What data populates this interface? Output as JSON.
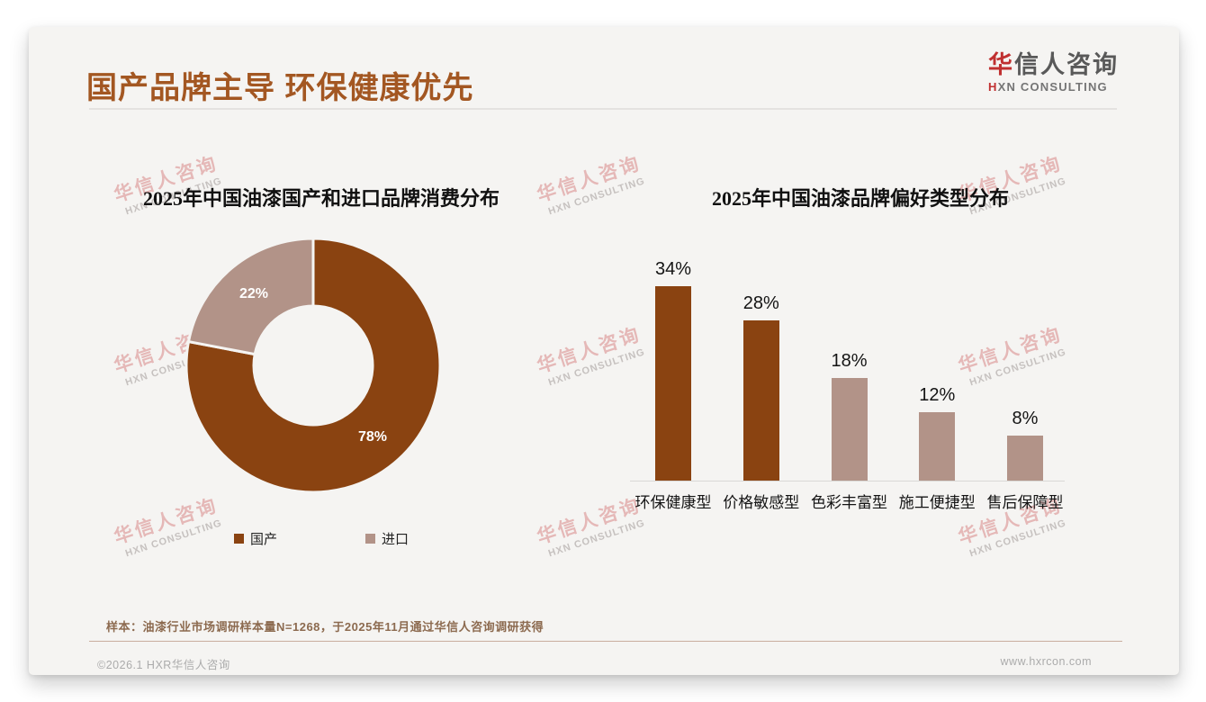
{
  "header": {
    "title": "国产品牌主导 环保健康优先",
    "logo_cn_first": "华",
    "logo_cn_rest": "信人咨询",
    "logo_en_first": "H",
    "logo_en_rest": "XN CONSULTING"
  },
  "watermark": {
    "cn": "华信人咨询",
    "en": "HXN CONSULTING"
  },
  "theme": {
    "title_brown": "#A35722",
    "dark_brown": "#8A4311",
    "taupe": "#B29388",
    "brand_red": "#C03030",
    "card_bg": "#F5F4F2"
  },
  "chart_data": [
    {
      "type": "pie",
      "donut": true,
      "title": "2025年中国油漆国产和进口品牌消费分布",
      "labels": [
        "国产",
        "进口"
      ],
      "values": [
        78,
        22
      ],
      "value_suffix": "%",
      "colors": [
        "#8A4311",
        "#B29388"
      ],
      "legend_position": "bottom",
      "start_angle_deg": 0,
      "direction": "clockwise"
    },
    {
      "type": "bar",
      "title": "2025年中国油漆品牌偏好类型分布",
      "categories": [
        "环保健康型",
        "价格敏感型",
        "色彩丰富型",
        "施工便捷型",
        "售后保障型"
      ],
      "values": [
        34,
        28,
        18,
        12,
        8
      ],
      "value_suffix": "%",
      "colors": [
        "#8A4311",
        "#8A4311",
        "#B29388",
        "#B29388",
        "#B29388"
      ],
      "xlabel": "",
      "ylabel": "",
      "ylim": [
        0,
        38
      ],
      "grid": false,
      "data_labels": "above-bars"
    }
  ],
  "footnote": {
    "source": "样本：油漆行业市场调研样本量N=1268，于2025年11月通过华信人咨询调研获得"
  },
  "footer": {
    "copyright": "©2026.1 HXR华信人咨询",
    "website": "www.hxrcon.com"
  }
}
